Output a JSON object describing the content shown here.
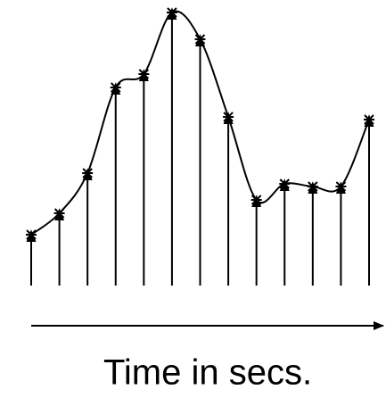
{
  "chart_data": {
    "type": "stem",
    "xlabel": "Time in secs.",
    "values": [
      19,
      27,
      42,
      74,
      79,
      102,
      92,
      63,
      32,
      38,
      37,
      37,
      62
    ],
    "ylim": [
      0,
      105
    ],
    "color": "#000000"
  }
}
